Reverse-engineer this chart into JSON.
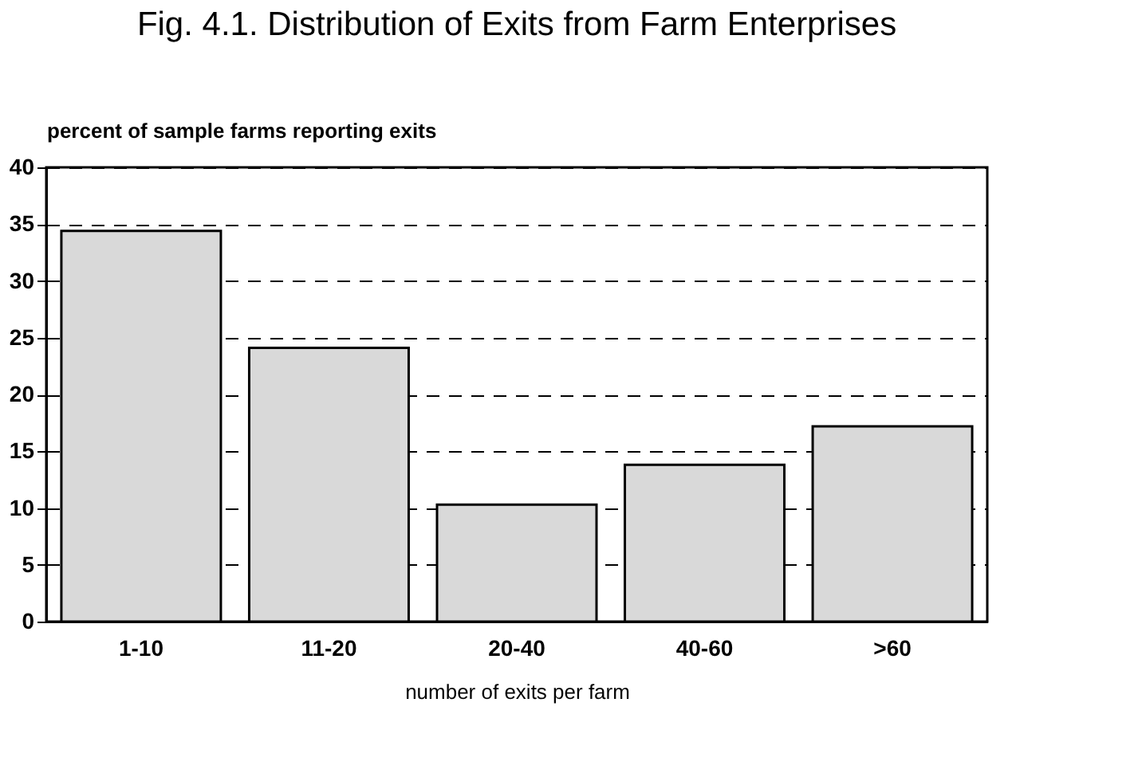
{
  "chart_data": {
    "type": "bar",
    "title": "Fig. 4.1. Distribution of Exits from Farm Enterprises",
    "xlabel": "number of exits per farm",
    "ylabel": "percent of sample farms reporting exits",
    "categories": [
      "1-10",
      "11-20",
      "20-40",
      "40-60",
      ">60"
    ],
    "values": [
      34.4,
      24.1,
      10.3,
      13.8,
      17.2
    ],
    "color": "#d9d9d9",
    "ylim": [
      0,
      40
    ],
    "yticks": [
      0,
      5,
      10,
      15,
      20,
      25,
      30,
      35,
      40
    ],
    "grid": "y"
  }
}
